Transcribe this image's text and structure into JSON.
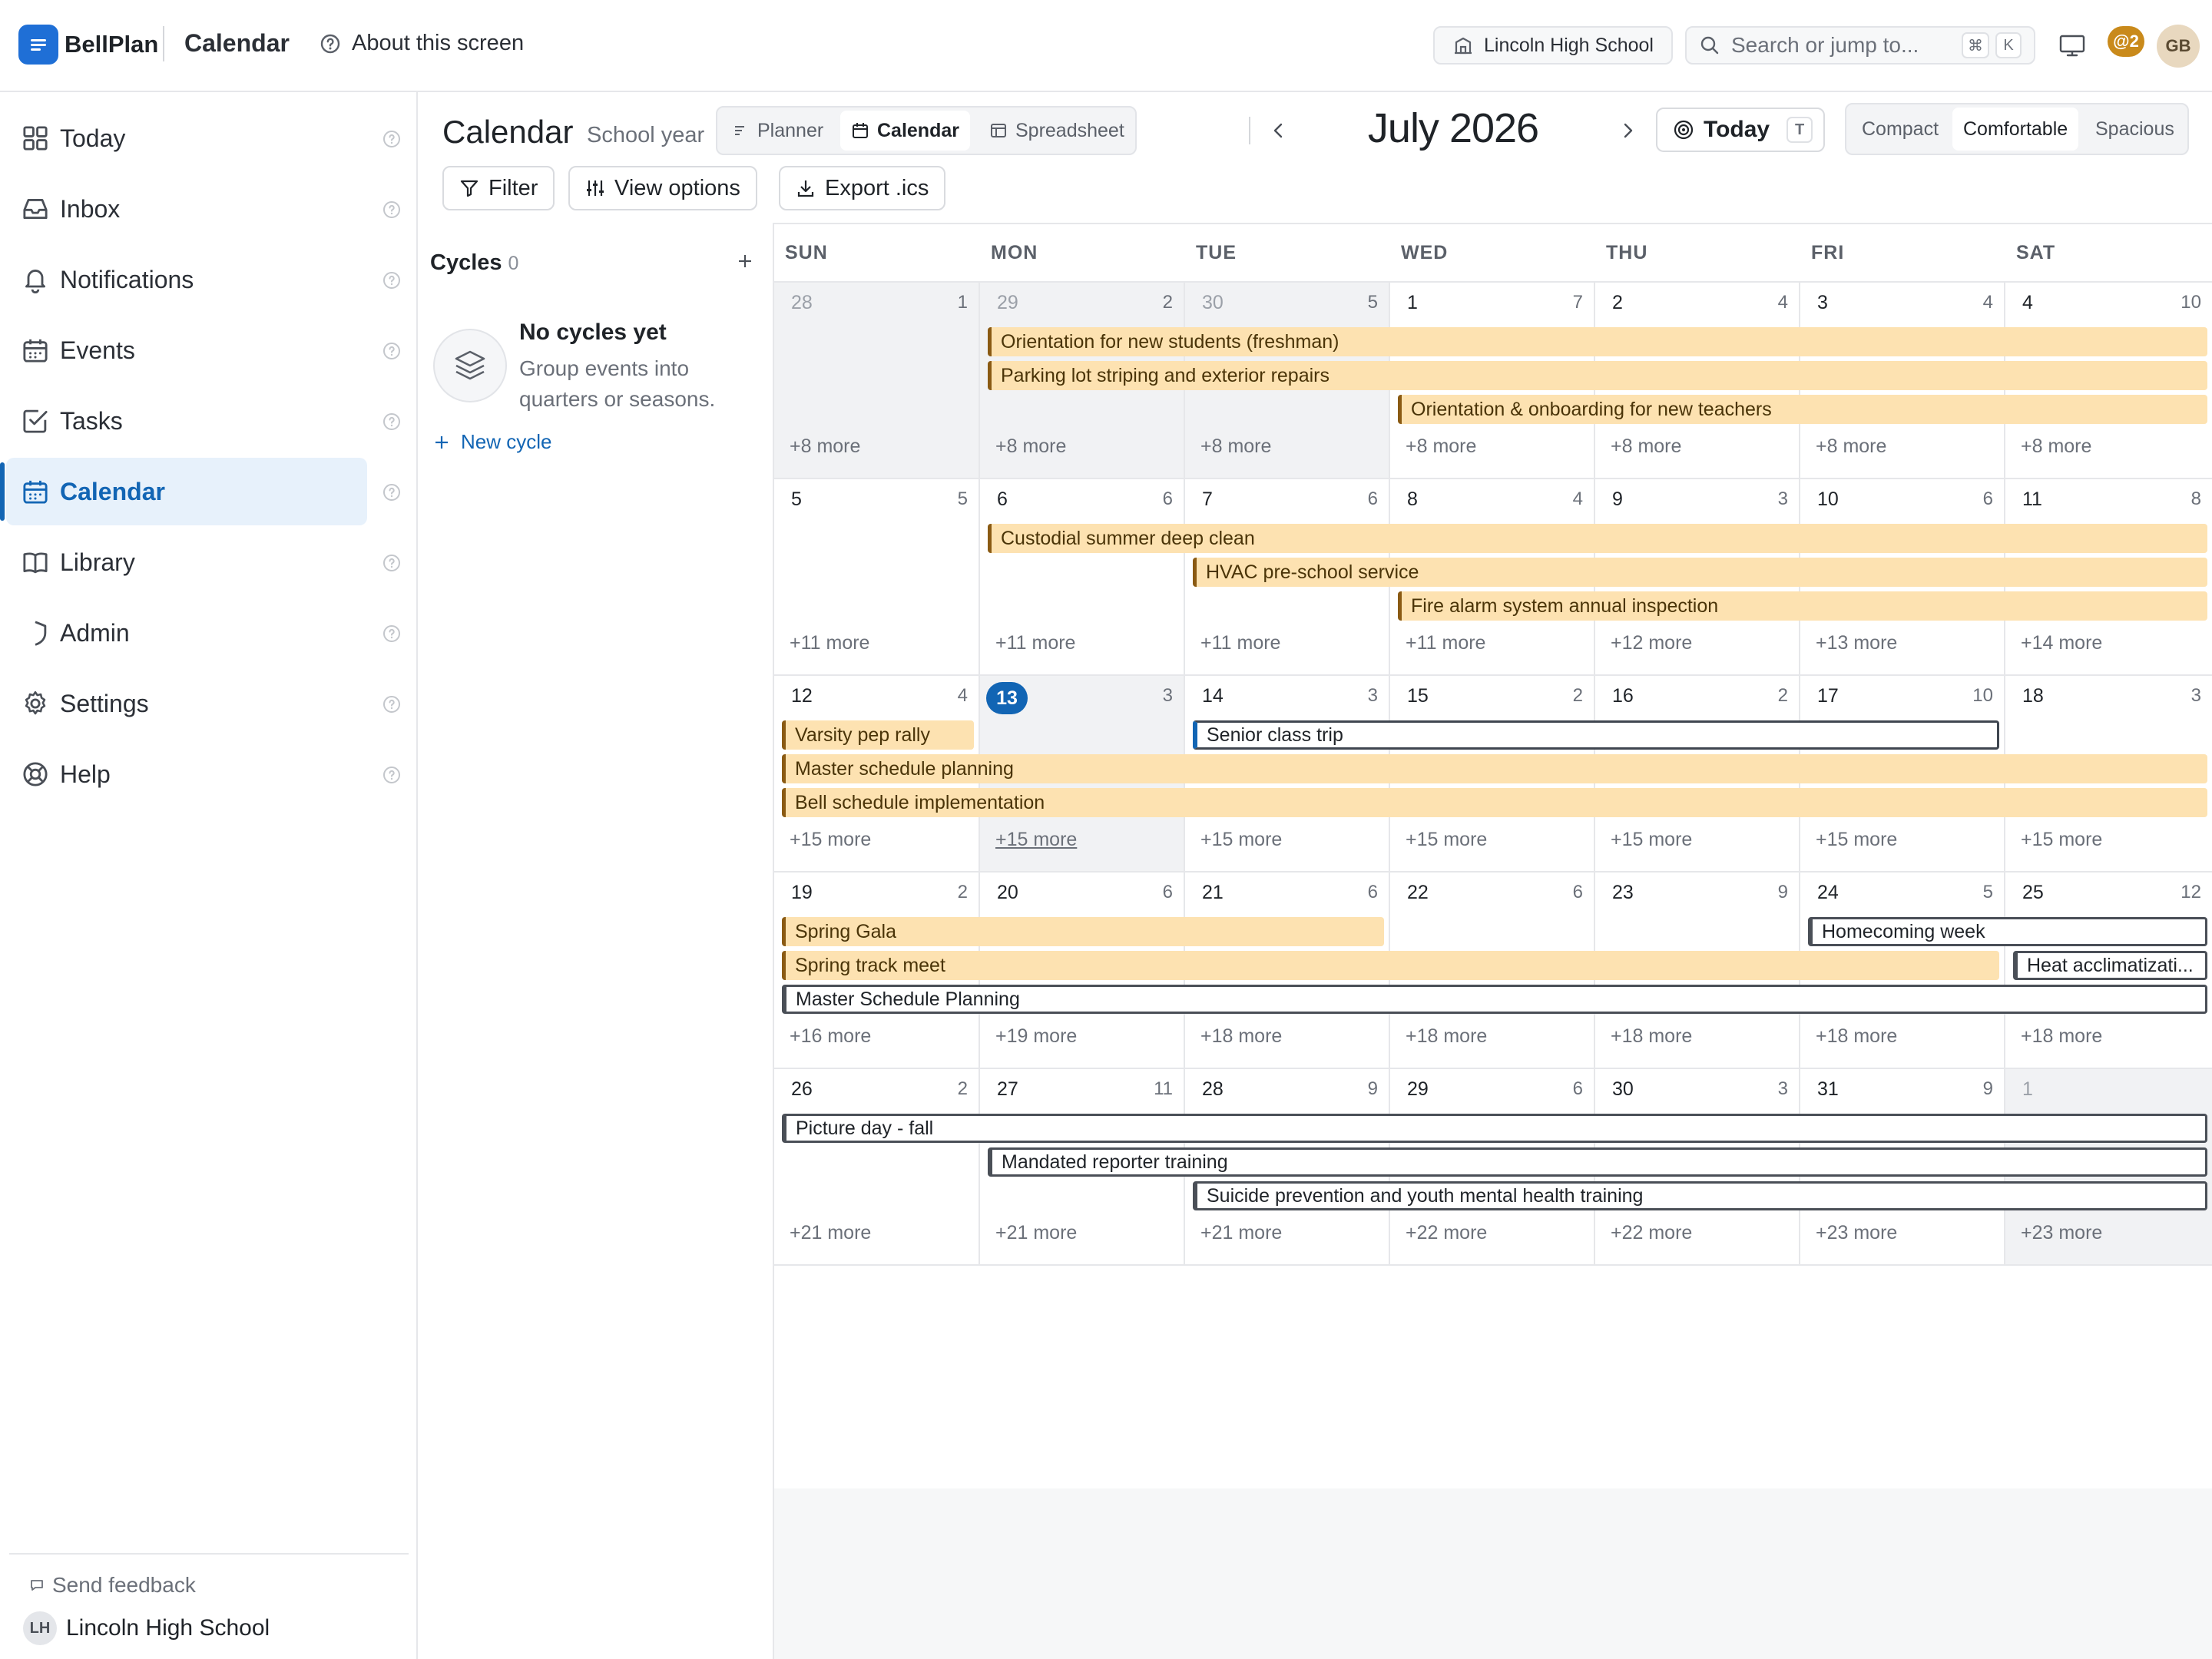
{
  "app": {
    "brand": "BellPlan",
    "page_title": "Calendar",
    "about_label": "About this screen",
    "school_chip": "Lincoln High School",
    "search_placeholder": "Search or jump to...",
    "search_kbd": [
      "⌘",
      "K"
    ],
    "mentions_badge": "@2",
    "user_initials": "GB"
  },
  "sidebar": {
    "items": [
      {
        "id": "today",
        "label": "Today",
        "icon": "grid-icon"
      },
      {
        "id": "inbox",
        "label": "Inbox",
        "icon": "inbox-icon"
      },
      {
        "id": "notifications",
        "label": "Notifications",
        "icon": "bell-icon"
      },
      {
        "id": "events",
        "label": "Events",
        "icon": "calendar-icon"
      },
      {
        "id": "tasks",
        "label": "Tasks",
        "icon": "check-square-icon"
      },
      {
        "id": "calendar",
        "label": "Calendar",
        "icon": "calendar-icon",
        "active": true
      },
      {
        "id": "library",
        "label": "Library",
        "icon": "book-icon"
      },
      {
        "id": "admin",
        "label": "Admin",
        "icon": "shield-icon"
      },
      {
        "id": "settings",
        "label": "Settings",
        "icon": "gear-icon"
      },
      {
        "id": "help",
        "label": "Help",
        "icon": "lifebuoy-icon"
      }
    ],
    "feedback_label": "Send feedback",
    "school_initials": "LH",
    "school_name": "Lincoln High School"
  },
  "header": {
    "title": "Calendar",
    "subtitle": "School year",
    "views": [
      {
        "label": "Planner",
        "icon": "list-icon"
      },
      {
        "label": "Calendar",
        "icon": "calendar-icon",
        "active": true
      },
      {
        "label": "Spreadsheet",
        "icon": "table-icon"
      }
    ],
    "month_label": "July 2026",
    "today_label": "Today",
    "today_kbd": "T",
    "density": [
      {
        "label": "Compact"
      },
      {
        "label": "Comfortable",
        "active": true
      },
      {
        "label": "Spacious"
      }
    ],
    "filter_label": "Filter",
    "view_options_label": "View options",
    "export_label": "Export .ics"
  },
  "cycles": {
    "title": "Cycles",
    "count": "0",
    "empty_title": "No cycles yet",
    "empty_desc": "Group events into quarters or seasons.",
    "new_cycle_label": "New cycle"
  },
  "calendar": {
    "weekdays": [
      "SUN",
      "MON",
      "TUE",
      "WED",
      "THU",
      "FRI",
      "SAT"
    ],
    "weeks": [
      {
        "days": [
          {
            "num": "28",
            "count": "1",
            "more": "+8 more",
            "out": true
          },
          {
            "num": "29",
            "count": "2",
            "more": "+8 more",
            "out": true
          },
          {
            "num": "30",
            "count": "5",
            "more": "+8 more",
            "out": true
          },
          {
            "num": "1",
            "count": "7",
            "more": "+8 more"
          },
          {
            "num": "2",
            "count": "4",
            "more": "+8 more"
          },
          {
            "num": "3",
            "count": "4",
            "more": "+8 more"
          },
          {
            "num": "4",
            "count": "10",
            "more": "+8 more"
          }
        ],
        "events": [
          {
            "title": "Orientation for new students (freshman)",
            "start": 1,
            "span": 6,
            "lane": 0,
            "style": "amber"
          },
          {
            "title": "Parking lot striping and exterior repairs",
            "start": 1,
            "span": 6,
            "lane": 1,
            "style": "amber"
          },
          {
            "title": "Orientation & onboarding for new teachers",
            "start": 3,
            "span": 4,
            "lane": 2,
            "style": "amber"
          }
        ]
      },
      {
        "days": [
          {
            "num": "5",
            "count": "5",
            "more": "+11 more"
          },
          {
            "num": "6",
            "count": "6",
            "more": "+11 more"
          },
          {
            "num": "7",
            "count": "6",
            "more": "+11 more"
          },
          {
            "num": "8",
            "count": "4",
            "more": "+11 more"
          },
          {
            "num": "9",
            "count": "3",
            "more": "+12 more"
          },
          {
            "num": "10",
            "count": "6",
            "more": "+13 more"
          },
          {
            "num": "11",
            "count": "8",
            "more": "+14 more"
          }
        ],
        "events": [
          {
            "title": "Custodial summer deep clean",
            "start": 1,
            "span": 6,
            "lane": 0,
            "style": "amber"
          },
          {
            "title": "HVAC pre-school service",
            "start": 2,
            "span": 5,
            "lane": 1,
            "style": "amber"
          },
          {
            "title": "Fire alarm system annual inspection",
            "start": 3,
            "span": 4,
            "lane": 2,
            "style": "amber"
          }
        ]
      },
      {
        "days": [
          {
            "num": "12",
            "count": "4",
            "more": "+15 more"
          },
          {
            "num": "13",
            "count": "3",
            "more": "+15 more",
            "today": true,
            "more_underline": true
          },
          {
            "num": "14",
            "count": "3",
            "more": "+15 more"
          },
          {
            "num": "15",
            "count": "2",
            "more": "+15 more"
          },
          {
            "num": "16",
            "count": "2",
            "more": "+15 more"
          },
          {
            "num": "17",
            "count": "10",
            "more": "+15 more"
          },
          {
            "num": "18",
            "count": "3",
            "more": "+15 more"
          }
        ],
        "events": [
          {
            "title": "Varsity pep rally",
            "start": 0,
            "span": 1,
            "lane": 0,
            "style": "amber"
          },
          {
            "title": "Senior class trip",
            "start": 2,
            "span": 4,
            "lane": 0,
            "style": "outline-blue"
          },
          {
            "title": "Master schedule planning",
            "start": 0,
            "span": 7,
            "lane": 1,
            "style": "amber"
          },
          {
            "title": "Bell schedule implementation",
            "start": 0,
            "span": 7,
            "lane": 2,
            "style": "amber"
          }
        ]
      },
      {
        "days": [
          {
            "num": "19",
            "count": "2",
            "more": "+16 more"
          },
          {
            "num": "20",
            "count": "6",
            "more": "+19 more"
          },
          {
            "num": "21",
            "count": "6",
            "more": "+18 more"
          },
          {
            "num": "22",
            "count": "6",
            "more": "+18 more"
          },
          {
            "num": "23",
            "count": "9",
            "more": "+18 more"
          },
          {
            "num": "24",
            "count": "5",
            "more": "+18 more"
          },
          {
            "num": "25",
            "count": "12",
            "more": "+18 more"
          }
        ],
        "events": [
          {
            "title": "Spring Gala",
            "start": 0,
            "span": 3,
            "lane": 0,
            "style": "amber"
          },
          {
            "title": "Homecoming week",
            "start": 5,
            "span": 2,
            "lane": 0,
            "style": "outline"
          },
          {
            "title": "Spring track meet",
            "start": 0,
            "span": 6,
            "lane": 1,
            "style": "amber"
          },
          {
            "title": "Heat acclimatizati...",
            "start": 6,
            "span": 1,
            "lane": 1,
            "style": "outline"
          },
          {
            "title": "Master Schedule Planning",
            "start": 0,
            "span": 7,
            "lane": 2,
            "style": "outline"
          }
        ]
      },
      {
        "days": [
          {
            "num": "26",
            "count": "2",
            "more": "+21 more"
          },
          {
            "num": "27",
            "count": "11",
            "more": "+21 more"
          },
          {
            "num": "28",
            "count": "9",
            "more": "+21 more"
          },
          {
            "num": "29",
            "count": "6",
            "more": "+22 more"
          },
          {
            "num": "30",
            "count": "3",
            "more": "+22 more"
          },
          {
            "num": "31",
            "count": "9",
            "more": "+23 more"
          },
          {
            "num": "1",
            "count": "",
            "more": "+23 more",
            "out": true
          }
        ],
        "events": [
          {
            "title": "Picture day - fall",
            "start": 0,
            "span": 7,
            "lane": 0,
            "style": "outline"
          },
          {
            "title": "Mandated reporter training",
            "start": 1,
            "span": 6,
            "lane": 1,
            "style": "outline"
          },
          {
            "title": "Suicide prevention and youth mental health training",
            "start": 2,
            "span": 5,
            "lane": 2,
            "style": "outline"
          }
        ]
      }
    ]
  }
}
